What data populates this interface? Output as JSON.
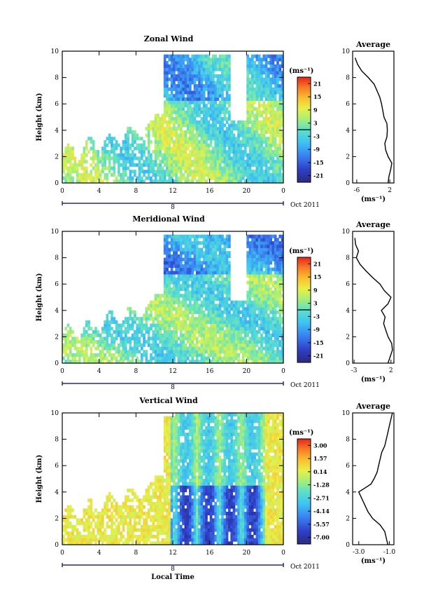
{
  "figure": {
    "time_label": "Local Time",
    "date_label": "Oct 2011",
    "day_label": "8",
    "y_label": "Height (km)",
    "unit_label": "(ms⁻¹)",
    "x_ticks": [
      "0",
      "4",
      "8",
      "12",
      "16",
      "20",
      "0"
    ],
    "y_ticks": [
      "0",
      "2",
      "4",
      "6",
      "8",
      "10"
    ]
  },
  "chart_data": [
    {
      "type": "heatmap",
      "title": "Zonal Wind",
      "xlabel": "",
      "ylabel": "Height (km)",
      "xlim": [
        0,
        24
      ],
      "ylim": [
        0,
        10
      ],
      "colorbar": {
        "unit": "(ms⁻¹)",
        "ticks": [
          "21",
          "15",
          "9",
          "3",
          "-3",
          "-9",
          "-15",
          "-21"
        ],
        "range": [
          -24,
          24
        ],
        "zero_line": 0
      },
      "average_profile": {
        "title": "Average",
        "x_ticks": [
          "-6",
          "2"
        ],
        "x_unit": "(ms⁻¹)",
        "xlim": [
          -7,
          3
        ],
        "height": [
          0,
          0.5,
          1,
          1.5,
          2,
          2.5,
          3,
          3.5,
          4,
          4.5,
          5,
          5.5,
          6,
          6.5,
          7,
          7.5,
          8,
          8.5,
          9,
          9.5
        ],
        "value": [
          1.6,
          1.8,
          2.2,
          2.5,
          1.6,
          1.0,
          0.8,
          1.3,
          1.4,
          1.3,
          0.6,
          0.3,
          0.0,
          -0.4,
          -1.1,
          -1.8,
          -3.2,
          -4.8,
          -5.8,
          -6.4
        ]
      }
    },
    {
      "type": "heatmap",
      "title": "Meridional Wind",
      "xlabel": "",
      "ylabel": "Height (km)",
      "xlim": [
        0,
        24
      ],
      "ylim": [
        0,
        10
      ],
      "colorbar": {
        "unit": "(ms⁻¹)",
        "ticks": [
          "21",
          "15",
          "9",
          "3",
          "-3",
          "-9",
          "-15",
          "-21"
        ],
        "range": [
          -24,
          24
        ],
        "zero_line": 0
      },
      "average_profile": {
        "title": "Average",
        "x_ticks": [
          "-3",
          "2"
        ],
        "x_unit": "(ms⁻¹)",
        "xlim": [
          -3.2,
          2.4
        ],
        "height": [
          0,
          0.5,
          1,
          1.5,
          2,
          2.5,
          3,
          3.5,
          4,
          4.5,
          5,
          5.5,
          6,
          6.5,
          7,
          7.5,
          8,
          8.5,
          9,
          9.5
        ],
        "value": [
          1.6,
          1.9,
          2.2,
          2.1,
          1.6,
          1.3,
          1.0,
          1.2,
          0.7,
          1.6,
          2.0,
          1.1,
          0.5,
          -0.5,
          -1.4,
          -2.2,
          -2.7,
          -2.4,
          -2.8,
          -2.9
        ]
      }
    },
    {
      "type": "heatmap",
      "title": "Vertical Wind",
      "xlabel": "Local Time",
      "ylabel": "Height (km)",
      "xlim": [
        0,
        24
      ],
      "ylim": [
        0,
        10
      ],
      "colorbar": {
        "unit": "(ms⁻¹)",
        "ticks": [
          "3.00",
          "1.57",
          "0.14",
          "-1.28",
          "-2.71",
          "-4.14",
          "-5.57",
          "-7.00"
        ],
        "range": [
          -8,
          4
        ],
        "zero_line": null
      },
      "average_profile": {
        "title": "Average",
        "x_ticks": [
          "-3.0",
          "-1.0"
        ],
        "x_unit": "(ms⁻¹)",
        "xlim": [
          -3.4,
          -0.7
        ],
        "height": [
          0,
          0.5,
          1,
          1.5,
          2,
          2.5,
          3,
          3.5,
          4,
          4.3,
          4.6,
          5,
          5.5,
          6,
          6.5,
          7,
          7.5,
          8,
          8.5,
          9,
          9.5,
          10
        ],
        "value": [
          -1.1,
          -1.2,
          -1.3,
          -1.6,
          -2.1,
          -2.4,
          -2.6,
          -2.8,
          -3.0,
          -2.6,
          -2.2,
          -2.0,
          -1.8,
          -1.7,
          -1.6,
          -1.5,
          -1.3,
          -1.2,
          -1.1,
          -1.0,
          -0.9,
          -0.8
        ]
      }
    }
  ]
}
